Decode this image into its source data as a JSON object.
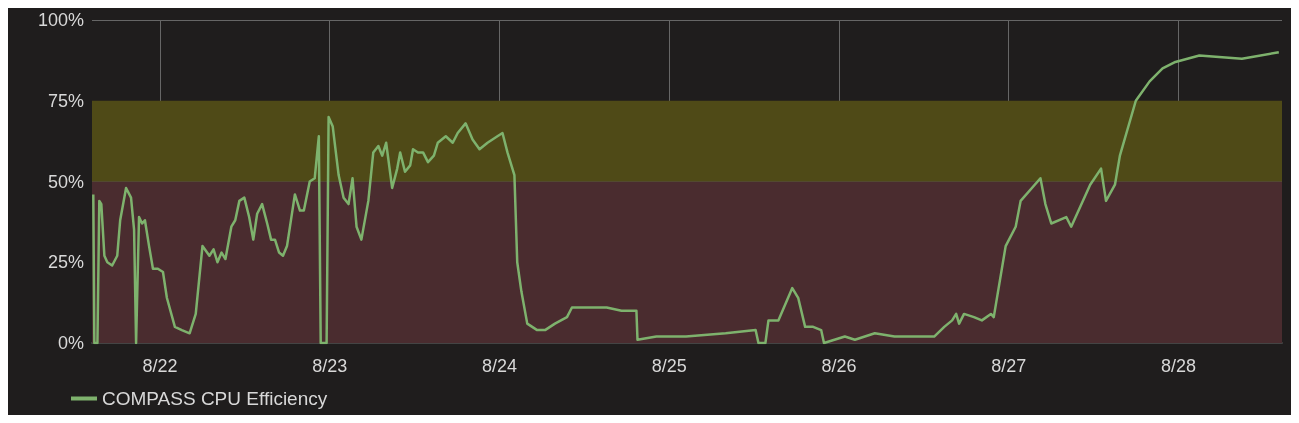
{
  "chart_data": {
    "type": "line",
    "x": [
      "--08-21T14:35",
      "--08-21T14:44",
      "--08-21T15:10",
      "--08-21T15:26",
      "--08-21T15:43",
      "--08-21T16:09",
      "--08-21T16:34",
      "--08-21T17:15",
      "--08-21T17:58",
      "--08-21T18:23",
      "--08-21T19:13",
      "--08-21T19:55",
      "--08-21T20:21",
      "--08-21T20:38",
      "--08-21T21:03",
      "--08-21T21:29",
      "--08-21T21:53",
      "--08-21T22:28",
      "--08-21T23:01",
      "--08-21T23:43",
      "--08-22T00:26",
      "--08-22T00:59",
      "--08-22T02:07",
      "--08-22T03:06",
      "--08-22T04:12",
      "--08-22T05:04",
      "--08-22T06:01",
      "--08-22T07:00",
      "--08-22T07:35",
      "--08-22T08:08",
      "--08-22T08:43",
      "--08-22T09:16",
      "--08-22T10:06",
      "--08-22T10:39",
      "--08-22T11:14",
      "--08-22T11:56",
      "--08-22T12:37",
      "--08-22T13:12",
      "--08-22T13:45",
      "--08-22T14:27",
      "--08-22T15:10",
      "--08-22T15:43",
      "--08-22T16:16",
      "--08-22T16:51",
      "--08-22T17:24",
      "--08-22T17:58",
      "--08-22T19:05",
      "--08-22T19:48",
      "--08-22T20:21",
      "--08-22T21:11",
      "--08-22T21:53",
      "--08-22T22:28",
      "--08-22T22:44",
      "--08-22T23:34",
      "--08-22T23:51",
      "--08-23T00:26",
      "--08-23T01:16",
      "--08-23T01:58",
      "--08-23T02:40",
      "--08-23T03:14",
      "--08-23T03:48",
      "--08-23T04:29",
      "--08-23T05:28",
      "--08-23T06:10",
      "--08-23T06:53",
      "--08-23T07:26",
      "--08-23T07:59",
      "--08-23T08:50",
      "--08-23T09:33",
      "--08-23T09:58",
      "--08-23T10:39",
      "--08-23T11:23",
      "--08-23T11:47",
      "--08-23T12:29",
      "--08-23T13:12",
      "--08-23T13:54",
      "--08-23T14:44",
      "--08-23T15:17",
      "--08-23T16:25",
      "--08-23T17:24",
      "--08-23T18:06",
      "--08-23T19:13",
      "--08-23T20:12",
      "--08-23T21:11",
      "--08-23T22:19",
      "--08-23T23:43",
      "--08-24T00:26",
      "--08-24T01:08",
      "--08-24T02:07",
      "--08-24T02:31",
      "--08-24T03:06",
      "--08-24T03:56",
      "--08-24T05:20",
      "--08-24T06:27",
      "--08-24T07:51",
      "--08-24T09:33",
      "--08-24T10:15",
      "--08-24T12:22",
      "--08-24T15:10",
      "--08-24T17:15",
      "--08-24T19:22",
      "--08-24T19:31",
      "--08-24T22:11",
      "--08-25T02:22",
      "--08-25T07:59",
      "--08-25T12:13",
      "--08-25T12:37",
      "--08-25T13:36",
      "--08-25T14:02",
      "--08-25T15:26",
      "--08-25T17:24",
      "--08-25T18:14",
      "--08-25T19:13",
      "--08-25T20:21",
      "--08-25T21:29",
      "--08-25T21:53",
      "--08-26T00:50",
      "--08-26T02:15",
      "--08-26T05:04",
      "--08-26T07:51",
      "--08-26T10:39",
      "--08-26T13:28",
      "--08-26T14:53",
      "--08-26T16:00",
      "--08-26T16:34",
      "--08-26T16:59",
      "--08-26T17:41",
      "--08-26T19:05",
      "--08-26T20:12",
      "--08-26T21:29",
      "--08-26T21:53",
      "--08-26T23:34",
      "--08-27T00:59",
      "--08-27T01:41",
      "--08-27T04:29",
      "--08-27T05:11",
      "--08-27T06:01",
      "--08-27T08:08",
      "--08-27T08:50",
      "--08-27T11:31",
      "--08-27T13:03",
      "--08-27T13:45",
      "--08-27T15:01",
      "--08-27T15:43",
      "--08-27T17:58",
      "--08-27T19:55",
      "--08-27T21:45",
      "--08-27T23:34",
      "--08-28T02:57",
      "--08-28T08:58",
      "--08-28T14:11"
    ],
    "series": [
      {
        "name": "COMPASS CPU Efficiency",
        "color": "#7eb26d",
        "values": [
          46,
          0,
          0,
          44,
          43,
          27,
          25,
          24,
          27,
          38,
          48,
          45,
          35,
          0,
          39,
          37,
          38,
          30,
          23,
          23,
          22,
          14,
          5,
          4,
          3,
          9,
          30,
          27,
          29,
          25,
          28,
          26,
          36,
          38,
          44,
          45,
          39,
          32,
          40,
          43,
          37,
          32,
          32,
          28,
          27,
          30,
          46,
          41,
          41,
          50,
          51,
          64,
          0,
          0,
          70,
          67,
          52,
          45,
          43,
          51,
          36,
          32,
          44,
          59,
          61,
          58,
          62,
          48,
          54,
          59,
          53,
          55,
          60,
          59,
          59,
          56,
          58,
          62,
          64,
          62,
          65,
          68,
          63,
          60,
          62,
          64,
          65,
          59,
          52,
          25,
          16,
          6,
          4,
          4,
          6,
          8,
          11,
          11,
          11,
          10,
          10,
          1,
          2,
          2,
          3,
          4,
          0,
          0,
          7,
          7,
          17,
          14,
          5,
          5,
          4,
          0,
          2,
          1,
          3,
          2,
          2,
          2,
          5,
          7,
          9,
          6,
          9,
          8,
          7,
          9,
          8,
          30,
          36,
          44,
          51,
          43,
          37,
          39,
          36,
          49,
          54,
          44,
          49,
          58,
          75,
          81,
          85,
          87,
          89,
          88,
          90
        ]
      }
    ],
    "xlim": [
      "--08-21T14:24",
      "--08-28T14:38"
    ],
    "xticks": [
      {
        "value": "--08-22",
        "label": "8/22"
      },
      {
        "value": "--08-23",
        "label": "8/23"
      },
      {
        "value": "--08-24",
        "label": "8/24"
      },
      {
        "value": "--08-25",
        "label": "8/25"
      },
      {
        "value": "--08-26",
        "label": "8/26"
      },
      {
        "value": "--08-27",
        "label": "8/27"
      },
      {
        "value": "--08-28",
        "label": "8/28"
      }
    ],
    "ylim": [
      0,
      100
    ],
    "yticks": [
      {
        "value": 0,
        "label": "0%"
      },
      {
        "value": 25,
        "label": "25%"
      },
      {
        "value": 50,
        "label": "50%"
      },
      {
        "value": 75,
        "label": "75%"
      },
      {
        "value": 100,
        "label": "100%"
      }
    ],
    "bands": [
      {
        "axis": "y",
        "from": 0,
        "to": 50,
        "color": "#4a2c2f"
      },
      {
        "axis": "y",
        "from": 50,
        "to": 75,
        "color": "#4f4a17"
      }
    ],
    "grid": true,
    "legend": "bottom left",
    "marker": "none",
    "line_style": "solid"
  }
}
